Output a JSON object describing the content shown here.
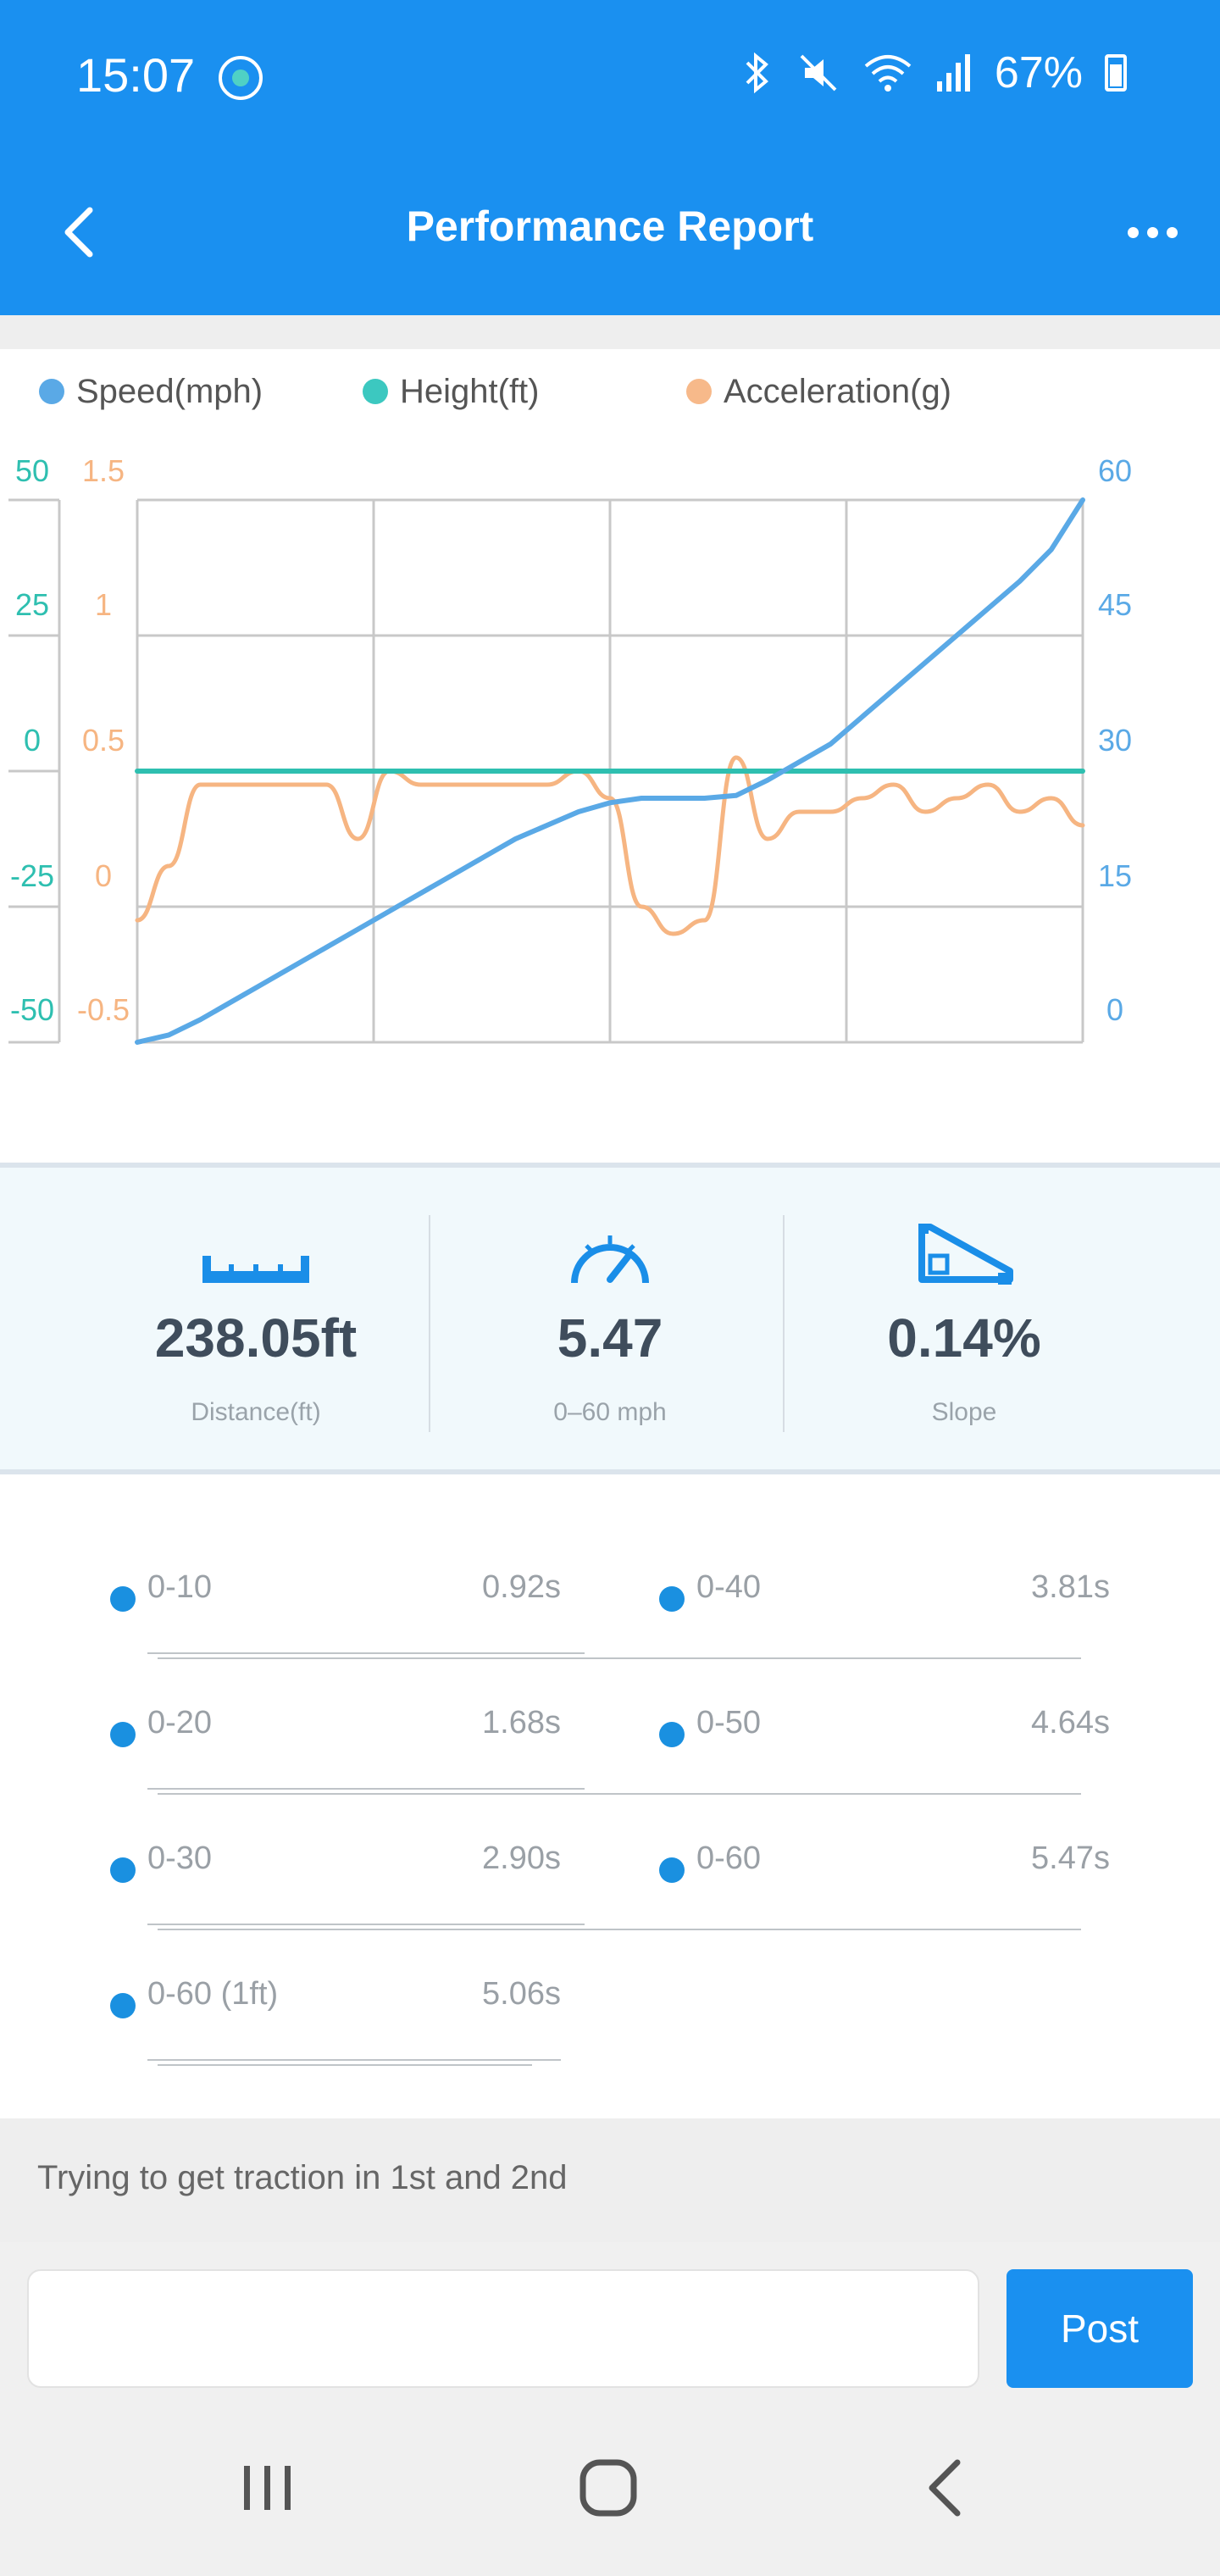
{
  "status_bar": {
    "time": "15:07",
    "battery": "67%",
    "icons": [
      "bluetooth-icon",
      "mute-icon",
      "wifi-icon",
      "signal-icon",
      "battery-icon"
    ]
  },
  "header": {
    "title": "Performance Report",
    "back_icon": "chevron-left-icon",
    "more_icon": "more-horizontal-icon"
  },
  "colors": {
    "primary": "#1a90f0",
    "speed": "#5aa9e6",
    "height": "#2ebfb0",
    "acceleration": "#f6b582"
  },
  "chart_data": {
    "type": "line",
    "legend": [
      {
        "name": "Speed(mph)",
        "color": "#5aa9e6"
      },
      {
        "name": "Height(ft)",
        "color": "#3cc8c0"
      },
      {
        "name": "Acceleration(g)",
        "color": "#f7b98a"
      }
    ],
    "axes": {
      "height_ticks": [
        "50",
        "25",
        "0",
        "-25",
        "-50"
      ],
      "acceleration_ticks": [
        "1.5",
        "1",
        "0.5",
        "0",
        "-0.5"
      ],
      "speed_ticks": [
        "60",
        "45",
        "30",
        "15",
        "0"
      ],
      "height_range": [
        -50,
        50
      ],
      "acceleration_range": [
        -0.5,
        1.5
      ],
      "speed_range": [
        0,
        60
      ]
    },
    "grid": true,
    "x": [
      0,
      0.2,
      0.4,
      0.6,
      0.8,
      1.0,
      1.2,
      1.4,
      1.6,
      1.8,
      2.0,
      2.2,
      2.4,
      2.6,
      2.8,
      3.0,
      3.2,
      3.4,
      3.6,
      3.8,
      4.0,
      4.2,
      4.4,
      4.6,
      4.8,
      5.0,
      5.2,
      5.4,
      5.6,
      5.8,
      6.0
    ],
    "series": [
      {
        "name": "Speed(mph)",
        "values": [
          0,
          0.8,
          2.5,
          4.5,
          6.5,
          8.5,
          10.5,
          12.5,
          14.5,
          16.5,
          18.5,
          20.5,
          22.5,
          24.0,
          25.5,
          26.5,
          27,
          27,
          27,
          27.3,
          29,
          31,
          33,
          36,
          39,
          42,
          45,
          48,
          51,
          54.5,
          60
        ]
      },
      {
        "name": "Height(ft)",
        "values": [
          0,
          0,
          0,
          0,
          0,
          0,
          0,
          0,
          0,
          0,
          0,
          0,
          0,
          0,
          0,
          0,
          0,
          0,
          0,
          0,
          0,
          0,
          0,
          0,
          0,
          0,
          0,
          0,
          0,
          0,
          0
        ]
      },
      {
        "name": "Acceleration(g)",
        "values": [
          -0.05,
          0.15,
          0.45,
          0.45,
          0.45,
          0.45,
          0.45,
          0.25,
          0.5,
          0.45,
          0.45,
          0.45,
          0.45,
          0.45,
          0.5,
          0.4,
          0.0,
          -0.1,
          -0.05,
          0.55,
          0.25,
          0.35,
          0.35,
          0.4,
          0.45,
          0.35,
          0.4,
          0.45,
          0.35,
          0.4,
          0.3
        ]
      }
    ]
  },
  "stats": [
    {
      "value": "238.05ft",
      "label": "Distance(ft)",
      "icon": "ruler-icon"
    },
    {
      "value": "5.47",
      "label": "0–60 mph",
      "icon": "speedometer-icon"
    },
    {
      "value": "0.14%",
      "label": "Slope",
      "icon": "slope-icon"
    }
  ],
  "times": [
    {
      "label": "0-10",
      "value": "0.92s"
    },
    {
      "label": "0-40",
      "value": "3.81s"
    },
    {
      "label": "0-20",
      "value": "1.68s"
    },
    {
      "label": "0-50",
      "value": "4.64s"
    },
    {
      "label": "0-30",
      "value": "2.90s"
    },
    {
      "label": "0-60",
      "value": "5.47s"
    },
    {
      "label": "0-60 (1ft)",
      "value": "5.06s"
    }
  ],
  "comment": {
    "text": "Trying to get traction in 1st and 2nd"
  },
  "post": {
    "button_label": "Post",
    "placeholder": ""
  },
  "system_nav": [
    "recents-icon",
    "home-icon",
    "back-icon"
  ]
}
